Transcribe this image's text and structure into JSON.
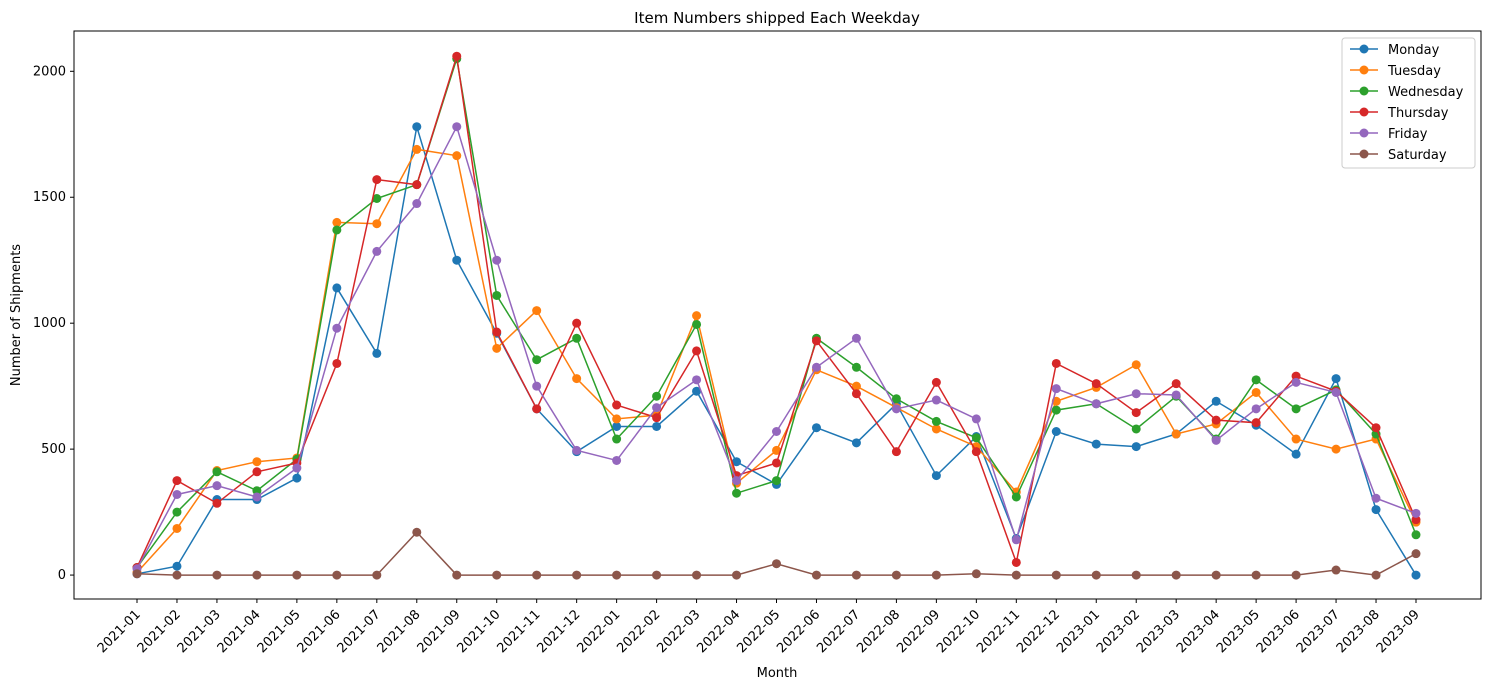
{
  "chart_data": {
    "type": "line",
    "title": "Item Numbers shipped Each Weekday",
    "xlabel": "Month",
    "ylabel": "Number of Shipments",
    "ylim": [
      -95,
      2160
    ],
    "yticks": [
      0,
      500,
      1000,
      1500,
      2000
    ],
    "grid": false,
    "legend_position": "top-right",
    "categories": [
      "2021-01",
      "2021-02",
      "2021-03",
      "2021-04",
      "2021-05",
      "2021-06",
      "2021-07",
      "2021-08",
      "2021-09",
      "2021-10",
      "2021-11",
      "2021-12",
      "2022-01",
      "2022-02",
      "2022-03",
      "2022-04",
      "2022-05",
      "2022-06",
      "2022-07",
      "2022-08",
      "2022-09",
      "2022-10",
      "2022-11",
      "2022-12",
      "2023-01",
      "2023-02",
      "2023-03",
      "2023-04",
      "2023-05",
      "2023-06",
      "2023-07",
      "2023-08",
      "2023-09"
    ],
    "series": [
      {
        "name": "Monday",
        "color": "#1f77b4",
        "values": [
          5,
          35,
          300,
          300,
          385,
          1140,
          880,
          1780,
          1250,
          960,
          660,
          490,
          590,
          590,
          730,
          450,
          360,
          585,
          525,
          680,
          395,
          550,
          145,
          570,
          520,
          510,
          560,
          690,
          595,
          480,
          780,
          260,
          0
        ]
      },
      {
        "name": "Tuesday",
        "color": "#ff7f0e",
        "values": [
          10,
          185,
          415,
          450,
          465,
          1400,
          1395,
          1690,
          1665,
          900,
          1050,
          780,
          620,
          635,
          1030,
          365,
          495,
          815,
          750,
          665,
          580,
          510,
          330,
          690,
          745,
          835,
          560,
          600,
          725,
          540,
          500,
          540,
          210
        ]
      },
      {
        "name": "Wednesday",
        "color": "#2ca02c",
        "values": [
          30,
          250,
          410,
          335,
          460,
          1370,
          1495,
          1550,
          2050,
          1110,
          855,
          940,
          540,
          710,
          995,
          325,
          375,
          940,
          825,
          700,
          610,
          545,
          310,
          655,
          680,
          580,
          710,
          540,
          775,
          660,
          735,
          560,
          160
        ]
      },
      {
        "name": "Thursday",
        "color": "#d62728",
        "values": [
          30,
          375,
          285,
          410,
          445,
          840,
          1570,
          1550,
          2060,
          965,
          660,
          1000,
          675,
          625,
          890,
          395,
          445,
          930,
          720,
          490,
          765,
          490,
          50,
          840,
          760,
          645,
          760,
          615,
          605,
          790,
          730,
          585,
          220
        ]
      },
      {
        "name": "Friday",
        "color": "#9467bd",
        "values": [
          25,
          320,
          355,
          310,
          425,
          980,
          1285,
          1475,
          1780,
          1250,
          750,
          495,
          455,
          665,
          775,
          375,
          570,
          825,
          940,
          660,
          695,
          620,
          140,
          740,
          680,
          720,
          715,
          535,
          660,
          765,
          725,
          305,
          245
        ]
      },
      {
        "name": "Saturday",
        "color": "#8c564b",
        "values": [
          5,
          0,
          0,
          0,
          0,
          0,
          0,
          170,
          0,
          0,
          0,
          0,
          0,
          0,
          0,
          0,
          45,
          0,
          0,
          0,
          0,
          5,
          0,
          0,
          0,
          0,
          0,
          0,
          0,
          0,
          20,
          0,
          85
        ]
      }
    ]
  }
}
